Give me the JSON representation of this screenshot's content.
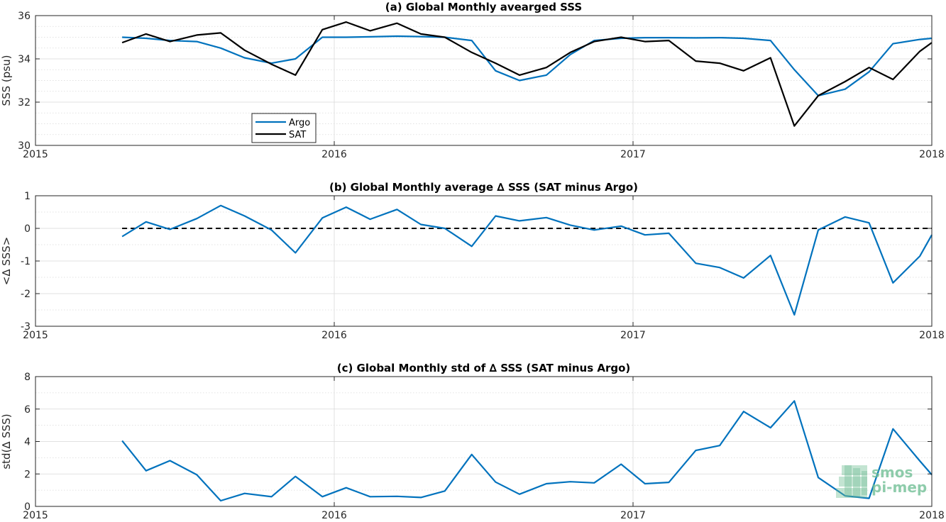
{
  "colors": {
    "argo": "#0072bd",
    "sat": "#000000",
    "axis": "#262626",
    "grid": "#d9d9d9",
    "zero_line": "#000000",
    "logo": "#6dbd92"
  },
  "logo": {
    "line1": "smos",
    "line2": "pi-mep"
  },
  "chart_data": [
    {
      "type": "line",
      "title": "(a) Global Monthly avearged SSS",
      "ylabel": "SSS (psu)",
      "xlabel": "",
      "xlim": [
        2015,
        2018
      ],
      "ylim": [
        30,
        36
      ],
      "xticks": [
        2015,
        2016,
        2017,
        2018
      ],
      "xtick_labels": [
        "2015",
        "2016",
        "2017",
        "2018"
      ],
      "yticks": [
        30,
        32,
        34,
        36
      ],
      "ytick_labels": [
        "30",
        "32",
        "34",
        "36"
      ],
      "minor_yticks": [
        30.5,
        31,
        31.5,
        32.5,
        33,
        33.5,
        34.5,
        35,
        35.5
      ],
      "grid": true,
      "legend": {
        "position": "lower-left-inside"
      },
      "x": [
        2015.29,
        2015.37,
        2015.45,
        2015.54,
        2015.62,
        2015.7,
        2015.79,
        2015.87,
        2015.96,
        2016.04,
        2016.12,
        2016.21,
        2016.29,
        2016.37,
        2016.46,
        2016.54,
        2016.62,
        2016.71,
        2016.79,
        2016.87,
        2016.96,
        2017.04,
        2017.12,
        2017.21,
        2017.29,
        2017.37,
        2017.46,
        2017.54,
        2017.62,
        2017.71,
        2017.79,
        2017.87,
        2017.96,
        2018.0
      ],
      "series": [
        {
          "name": "Argo",
          "color": "#0072bd",
          "values": [
            35.0,
            34.95,
            34.85,
            34.8,
            34.5,
            34.05,
            33.8,
            34.0,
            35.0,
            35.0,
            35.02,
            35.05,
            35.03,
            35.0,
            34.85,
            33.45,
            33.0,
            33.25,
            34.2,
            34.85,
            34.95,
            34.98,
            34.98,
            34.97,
            34.98,
            34.95,
            34.85,
            33.5,
            32.3,
            32.6,
            33.4,
            34.7,
            34.9,
            34.95
          ]
        },
        {
          "name": "SAT",
          "color": "#000000",
          "values": [
            34.75,
            35.15,
            34.8,
            35.1,
            35.2,
            34.4,
            33.75,
            33.25,
            35.35,
            35.7,
            35.3,
            35.65,
            35.15,
            35.0,
            34.3,
            33.8,
            33.25,
            33.6,
            34.3,
            34.8,
            35.0,
            34.8,
            34.85,
            33.9,
            33.8,
            33.45,
            34.05,
            30.9,
            32.3,
            32.95,
            33.6,
            33.05,
            34.35,
            34.75
          ]
        }
      ]
    },
    {
      "type": "line",
      "title": "(b) Global Monthly average ∆ SSS (SAT minus Argo)",
      "ylabel": "<∆ SSS>",
      "xlabel": "",
      "xlim": [
        2015,
        2018
      ],
      "ylim": [
        -3,
        1
      ],
      "xticks": [
        2015,
        2016,
        2017,
        2018
      ],
      "xtick_labels": [
        "2015",
        "2016",
        "2017",
        "2018"
      ],
      "yticks": [
        -3,
        -2,
        -1,
        0,
        1
      ],
      "ytick_labels": [
        "-3",
        "-2",
        "-1",
        "0",
        "1"
      ],
      "minor_yticks": [
        -2.5,
        -1.5,
        -0.5,
        0.5
      ],
      "grid": true,
      "reference_line": 0,
      "x": [
        2015.29,
        2015.37,
        2015.45,
        2015.54,
        2015.62,
        2015.7,
        2015.79,
        2015.87,
        2015.96,
        2016.04,
        2016.12,
        2016.21,
        2016.29,
        2016.37,
        2016.46,
        2016.54,
        2016.62,
        2016.71,
        2016.79,
        2016.87,
        2016.96,
        2017.04,
        2017.12,
        2017.21,
        2017.29,
        2017.37,
        2017.46,
        2017.54,
        2017.62,
        2017.71,
        2017.79,
        2017.87,
        2017.96,
        2018.0
      ],
      "series": [
        {
          "name": "",
          "color": "#0072bd",
          "values": [
            -0.25,
            0.2,
            -0.03,
            0.3,
            0.7,
            0.38,
            -0.05,
            -0.75,
            0.32,
            0.65,
            0.28,
            0.58,
            0.12,
            0.0,
            -0.55,
            0.38,
            0.23,
            0.33,
            0.1,
            -0.05,
            0.07,
            -0.2,
            -0.15,
            -1.07,
            -1.2,
            -1.52,
            -0.83,
            -2.65,
            -0.05,
            0.35,
            0.17,
            -1.67,
            -0.85,
            -0.2
          ]
        }
      ]
    },
    {
      "type": "line",
      "title": "(c) Global Monthly std of ∆ SSS (SAT minus Argo)",
      "ylabel": "std(∆ SSS)",
      "xlabel": "",
      "xlim": [
        2015,
        2018
      ],
      "ylim": [
        0,
        8
      ],
      "xticks": [
        2015,
        2016,
        2017,
        2018
      ],
      "xtick_labels": [
        "2015",
        "2016",
        "2017",
        "2018"
      ],
      "yticks": [
        0,
        2,
        4,
        6,
        8
      ],
      "ytick_labels": [
        "0",
        "2",
        "4",
        "6",
        "8"
      ],
      "minor_yticks": [
        1,
        3,
        5,
        7
      ],
      "grid": true,
      "x": [
        2015.29,
        2015.37,
        2015.45,
        2015.54,
        2015.62,
        2015.7,
        2015.79,
        2015.87,
        2015.96,
        2016.04,
        2016.12,
        2016.21,
        2016.29,
        2016.37,
        2016.46,
        2016.54,
        2016.62,
        2016.71,
        2016.79,
        2016.87,
        2016.96,
        2017.04,
        2017.12,
        2017.21,
        2017.29,
        2017.37,
        2017.46,
        2017.54,
        2017.62,
        2017.71,
        2017.79,
        2017.87,
        2017.96,
        2018.0
      ],
      "series": [
        {
          "name": "",
          "color": "#0072bd",
          "values": [
            4.05,
            2.2,
            2.82,
            1.95,
            0.35,
            0.8,
            0.6,
            1.85,
            0.6,
            1.15,
            0.6,
            0.62,
            0.55,
            0.95,
            3.2,
            1.5,
            0.75,
            1.4,
            1.52,
            1.45,
            2.6,
            1.4,
            1.48,
            3.45,
            3.75,
            5.85,
            4.85,
            6.5,
            1.78,
            0.65,
            0.5,
            4.78,
            2.8,
            1.95
          ]
        }
      ]
    }
  ]
}
